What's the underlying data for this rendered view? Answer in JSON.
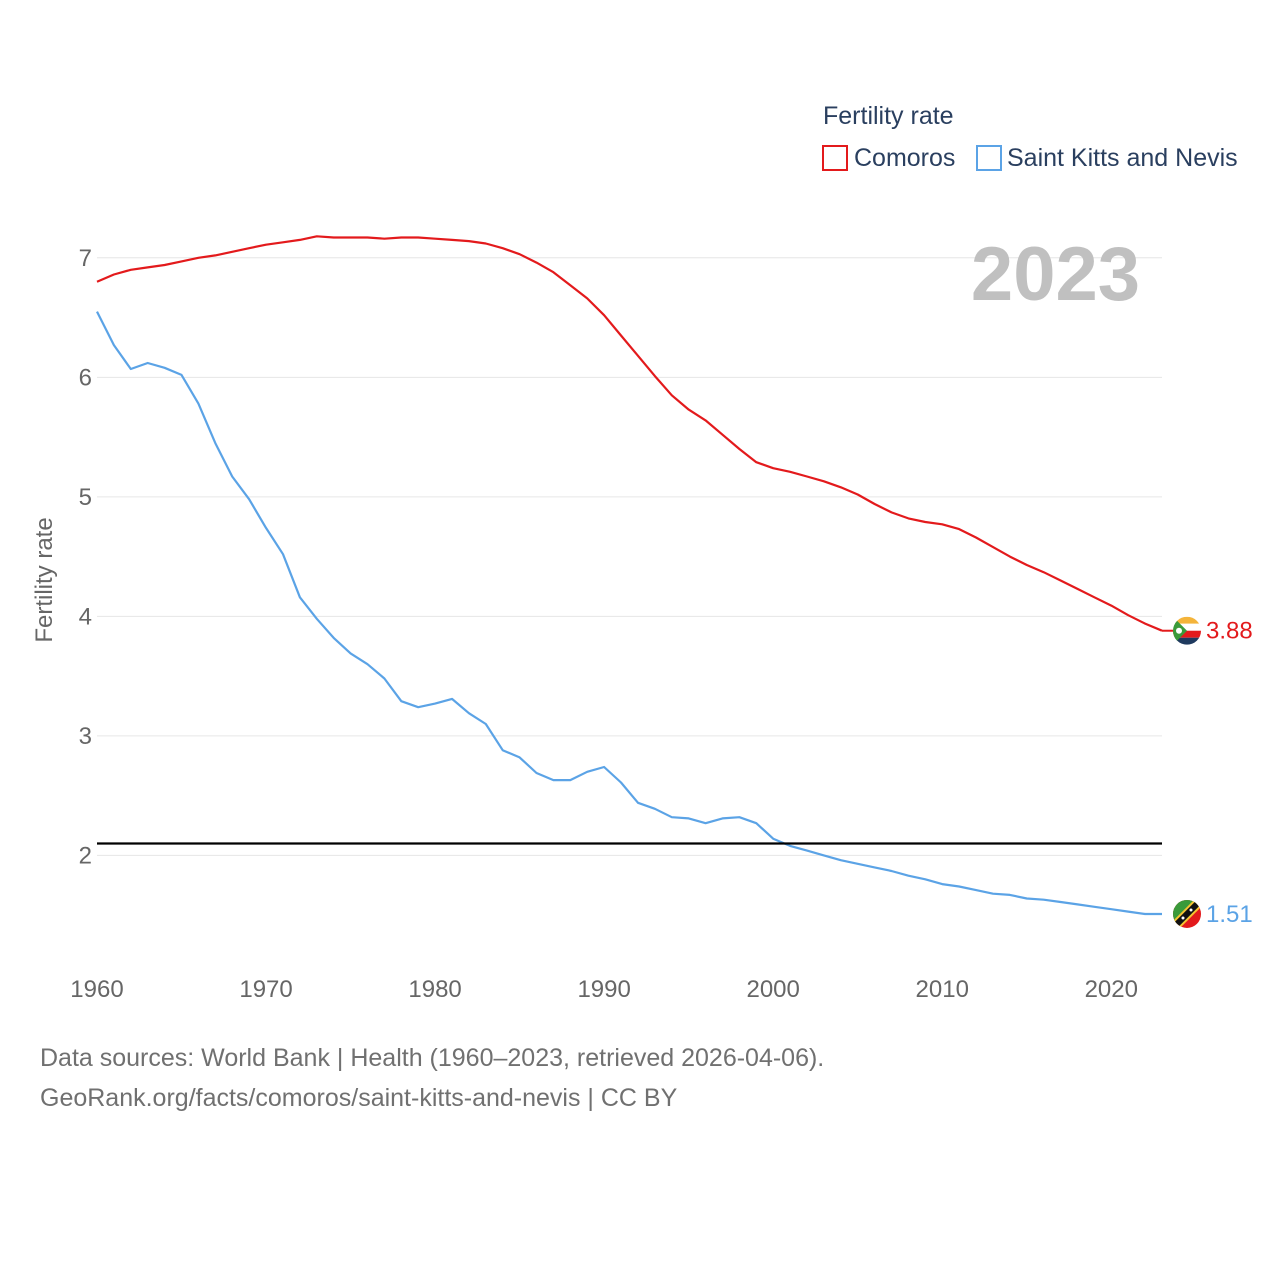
{
  "chart_data": {
    "type": "line",
    "title": "",
    "xlabel": "",
    "ylabel": "Fertility rate",
    "xlim": [
      1960,
      2023
    ],
    "ylim": [
      1.1,
      7.4
    ],
    "x_ticks": [
      1960,
      1970,
      1980,
      1990,
      2000,
      2010,
      2020
    ],
    "y_ticks": [
      2,
      3,
      4,
      5,
      6,
      7
    ],
    "legend_title": "Fertility rate",
    "year_label": "2023",
    "reference_line": {
      "value": 2.1,
      "color": "#000000"
    },
    "series": [
      {
        "name": "Comoros",
        "color": "#e31a1c",
        "end_label": "3.88",
        "x": [
          1960,
          1961,
          1962,
          1963,
          1964,
          1965,
          1966,
          1967,
          1968,
          1969,
          1970,
          1971,
          1972,
          1973,
          1974,
          1975,
          1976,
          1977,
          1978,
          1979,
          1980,
          1981,
          1982,
          1983,
          1984,
          1985,
          1986,
          1987,
          1988,
          1989,
          1990,
          1991,
          1992,
          1993,
          1994,
          1995,
          1996,
          1997,
          1998,
          1999,
          2000,
          2001,
          2002,
          2003,
          2004,
          2005,
          2006,
          2007,
          2008,
          2009,
          2010,
          2011,
          2012,
          2013,
          2014,
          2015,
          2016,
          2017,
          2018,
          2019,
          2020,
          2021,
          2022,
          2023
        ],
        "values": [
          6.8,
          6.86,
          6.9,
          6.92,
          6.94,
          6.97,
          7.0,
          7.02,
          7.05,
          7.08,
          7.11,
          7.13,
          7.15,
          7.18,
          7.17,
          7.17,
          7.17,
          7.16,
          7.17,
          7.17,
          7.16,
          7.15,
          7.14,
          7.12,
          7.08,
          7.03,
          6.96,
          6.88,
          6.77,
          6.66,
          6.52,
          6.35,
          6.18,
          6.01,
          5.85,
          5.73,
          5.64,
          5.52,
          5.4,
          5.29,
          5.24,
          5.21,
          5.17,
          5.13,
          5.08,
          5.02,
          4.94,
          4.87,
          4.82,
          4.79,
          4.77,
          4.73,
          4.66,
          4.58,
          4.5,
          4.43,
          4.37,
          4.3,
          4.23,
          4.16,
          4.09,
          4.01,
          3.94,
          3.88
        ]
      },
      {
        "name": "Saint Kitts and Nevis",
        "color": "#5ba3e6",
        "end_label": "1.51",
        "x": [
          1960,
          1961,
          1962,
          1963,
          1964,
          1965,
          1966,
          1967,
          1968,
          1969,
          1970,
          1971,
          1972,
          1973,
          1974,
          1975,
          1976,
          1977,
          1978,
          1979,
          1980,
          1981,
          1982,
          1983,
          1984,
          1985,
          1986,
          1987,
          1988,
          1989,
          1990,
          1991,
          1992,
          1993,
          1994,
          1995,
          1996,
          1997,
          1998,
          1999,
          2000,
          2001,
          2002,
          2003,
          2004,
          2005,
          2006,
          2007,
          2008,
          2009,
          2010,
          2011,
          2012,
          2013,
          2014,
          2015,
          2016,
          2017,
          2018,
          2019,
          2020,
          2021,
          2022,
          2023
        ],
        "values": [
          6.55,
          6.27,
          6.07,
          6.12,
          6.08,
          6.02,
          5.78,
          5.45,
          5.17,
          4.98,
          4.74,
          4.52,
          4.16,
          3.98,
          3.82,
          3.69,
          3.6,
          3.48,
          3.29,
          3.24,
          3.27,
          3.31,
          3.19,
          3.1,
          2.88,
          2.82,
          2.69,
          2.63,
          2.63,
          2.7,
          2.74,
          2.61,
          2.44,
          2.39,
          2.32,
          2.31,
          2.27,
          2.31,
          2.32,
          2.27,
          2.14,
          2.08,
          2.04,
          2.0,
          1.96,
          1.93,
          1.9,
          1.87,
          1.83,
          1.8,
          1.76,
          1.74,
          1.71,
          1.68,
          1.67,
          1.64,
          1.63,
          1.61,
          1.59,
          1.57,
          1.55,
          1.53,
          1.51,
          1.51
        ]
      }
    ]
  },
  "footer": {
    "line1": "Data sources: World Bank | Health (1960–2023, retrieved 2026-04-06).",
    "line2": "GeoRank.org/facts/comoros/saint-kitts-and-nevis | CC BY"
  }
}
